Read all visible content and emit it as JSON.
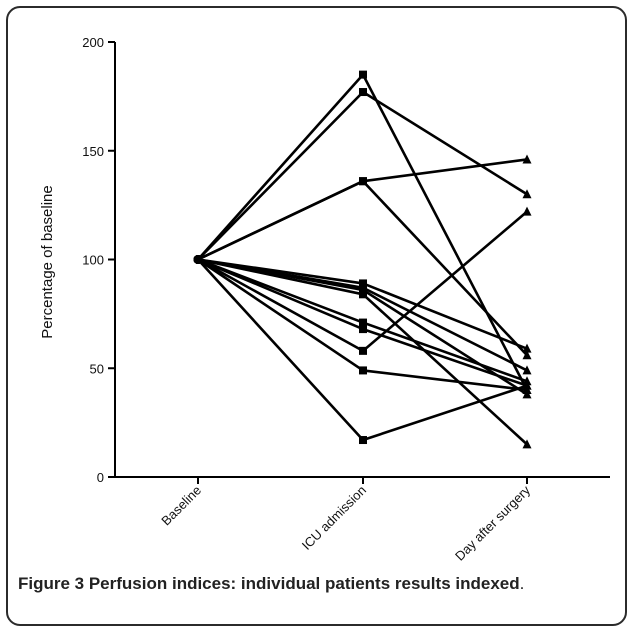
{
  "chart_data": {
    "type": "line",
    "categories": [
      "Baseline",
      "ICU admission",
      "Day after surgery"
    ],
    "xlabel": "",
    "ylabel": "Percentage of baseline",
    "ylim": [
      0,
      200
    ],
    "yticks": [
      0,
      50,
      100,
      150,
      200
    ],
    "grid": false,
    "legend": "none",
    "line_color": "#000000",
    "series": [
      {
        "marker": "square",
        "values": [
          100,
          185,
          40
        ]
      },
      {
        "marker": "square",
        "values": [
          100,
          177,
          130
        ]
      },
      {
        "marker": "square",
        "values": [
          100,
          136,
          146
        ]
      },
      {
        "marker": "square",
        "values": [
          100,
          136,
          56
        ]
      },
      {
        "marker": "square",
        "values": [
          100,
          89,
          59
        ]
      },
      {
        "marker": "square",
        "values": [
          100,
          87,
          49
        ]
      },
      {
        "marker": "square",
        "values": [
          100,
          84,
          15
        ]
      },
      {
        "marker": "square",
        "values": [
          100,
          71,
          44
        ]
      },
      {
        "marker": "square",
        "values": [
          100,
          68,
          42
        ]
      },
      {
        "marker": "square",
        "values": [
          100,
          58,
          122
        ]
      },
      {
        "marker": "square",
        "values": [
          100,
          49,
          40
        ]
      },
      {
        "marker": "square",
        "values": [
          100,
          17,
          42
        ]
      },
      {
        "marker": "square",
        "values": [
          100,
          86,
          38
        ]
      }
    ]
  },
  "caption": {
    "lead": "Figure 3 Perfusion indices: individual patients results indexed",
    "tail": "."
  }
}
